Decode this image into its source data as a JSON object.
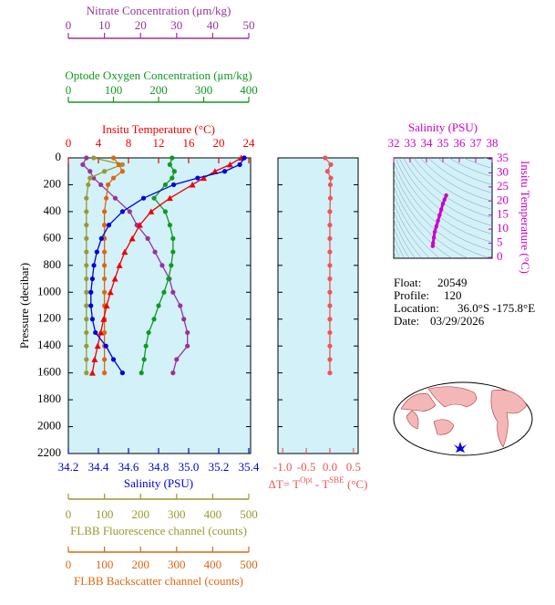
{
  "chart_data": [
    {
      "type": "profile",
      "y_title": "Pressure (decibar)",
      "ylim": [
        0,
        2200
      ],
      "y_inverted": true,
      "yticks": [
        0,
        200,
        400,
        600,
        800,
        1000,
        1200,
        1400,
        1600,
        1800,
        2000,
        2200
      ],
      "background": "#d2f1f9",
      "pressure": [
        0,
        50,
        100,
        150,
        200,
        300,
        400,
        500,
        600,
        700,
        800,
        900,
        1000,
        1100,
        1200,
        1300,
        1400,
        1500,
        1600
      ],
      "axes": [
        {
          "title": "Nitrate Concentration (μm/kg)",
          "color": "#993399",
          "lim": [
            0,
            50
          ],
          "ticks": [
            0,
            10,
            20,
            30,
            40,
            50
          ]
        },
        {
          "title": "Optode Oxygen Concentration (μm/kg)",
          "color": "#119922",
          "lim": [
            0,
            400
          ],
          "ticks": [
            0,
            100,
            200,
            300,
            400
          ]
        },
        {
          "title": "Insitu Temperature (°C)",
          "color": "#ee0000",
          "lim": [
            0,
            24
          ],
          "ticks": [
            0,
            4,
            8,
            12,
            16,
            20,
            24
          ]
        },
        {
          "title": "Salinity (PSU)",
          "color": "#0000dd",
          "lim": [
            34.2,
            35.4
          ],
          "ticks": [
            34.2,
            34.4,
            34.6,
            34.8,
            {
              "value": 35,
              "label": "35.0"
            },
            35.2,
            35.4
          ]
        },
        {
          "title": "FLBB Fluorescence channel (counts)",
          "color": "#999933",
          "lim": [
            0,
            500
          ],
          "ticks": [
            0,
            100,
            200,
            300,
            400,
            500
          ]
        },
        {
          "title": "FLBB Backscatter channel (counts)",
          "color": "#dd6611",
          "lim": [
            0,
            500
          ],
          "ticks": [
            0,
            100,
            200,
            300,
            400,
            500
          ]
        },
        {
          "title": [
            "ΔT= T",
            "Opt",
            " - T",
            "SBE",
            " (°C)"
          ],
          "color": "#ee5555",
          "lim": [
            -1.1,
            0.6
          ],
          "ticks": [
            {
              "value": -1,
              "label": "-1.0"
            },
            -0.5,
            {
              "value": 0,
              "label": "0.0"
            },
            0.5
          ]
        }
      ],
      "series": [
        {
          "axis": 0,
          "color": "#993399",
          "marker": "circle",
          "values": [
            5,
            4,
            6,
            7,
            9,
            13,
            17,
            19,
            22,
            24,
            26,
            28,
            29,
            31,
            32,
            33,
            33,
            30,
            29
          ]
        },
        {
          "axis": 1,
          "color": "#119922",
          "marker": "circle",
          "values": [
            230,
            225,
            235,
            230,
            215,
            190,
            215,
            225,
            232,
            232,
            228,
            222,
            212,
            200,
            190,
            178,
            172,
            168,
            162
          ]
        },
        {
          "axis": 4,
          "color": "#999933",
          "marker": "circle",
          "values": [
            70,
            150,
            100,
            60,
            55,
            50,
            50,
            50,
            50,
            50,
            50,
            50,
            50,
            50,
            50,
            50,
            50,
            50,
            50
          ]
        },
        {
          "axis": 5,
          "color": "#dd6611",
          "marker": "circle",
          "values": [
            125,
            140,
            150,
            125,
            110,
            105,
            100,
            100,
            100,
            100,
            100,
            100,
            100,
            100,
            100,
            100,
            100,
            100,
            100
          ]
        },
        {
          "axis": 2,
          "color": "#ee0000",
          "marker": "triangle",
          "values": [
            23,
            21.5,
            19.5,
            18,
            16.5,
            13.5,
            11,
            9.5,
            8.5,
            7.5,
            6.8,
            6.2,
            5.6,
            5.1,
            4.7,
            4.3,
            3.9,
            3.5,
            3.2
          ]
        },
        {
          "axis": 3,
          "color": "#0000dd",
          "marker": "circle",
          "values": [
            35.37,
            35.34,
            35.24,
            35.06,
            34.9,
            34.7,
            34.56,
            34.47,
            34.42,
            34.39,
            34.37,
            34.36,
            34.35,
            34.35,
            34.36,
            34.38,
            34.45,
            34.5,
            34.56
          ]
        },
        {
          "axis": 6,
          "color": "#ee5555",
          "marker": "circle",
          "values": [
            -0.1,
            0.02,
            -0.05,
            0.02,
            0.01,
            0.01,
            0,
            0,
            0,
            0,
            0,
            0,
            0,
            0,
            0,
            0,
            0,
            0,
            0
          ]
        }
      ]
    },
    {
      "type": "ts_diagram",
      "color": "#cc00cc",
      "x_title": "Salinity (PSU)",
      "y_title": "Insitu Temperature (°C)",
      "xlim": [
        32,
        38
      ],
      "xticks": [
        32,
        33,
        34,
        35,
        36,
        37,
        38
      ],
      "ylim": [
        0,
        35
      ],
      "yticks": [
        0,
        5,
        10,
        15,
        20,
        25,
        30,
        35
      ],
      "x": [
        35.2,
        35.1,
        35.0,
        34.9,
        34.8,
        34.7,
        34.6,
        34.5,
        34.45,
        34.4,
        34.38
      ],
      "values": [
        22,
        20.5,
        19,
        17,
        15,
        13,
        11,
        9,
        7,
        5,
        4
      ]
    }
  ],
  "float_info": [
    {
      "label": "Float:",
      "value": "20549"
    },
    {
      "label": "Profile:",
      "value": "120"
    },
    {
      "label": "Location:",
      "value": "36.0°S  -175.8°E"
    },
    {
      "label": "Date:",
      "value": "03/29/2026"
    }
  ]
}
